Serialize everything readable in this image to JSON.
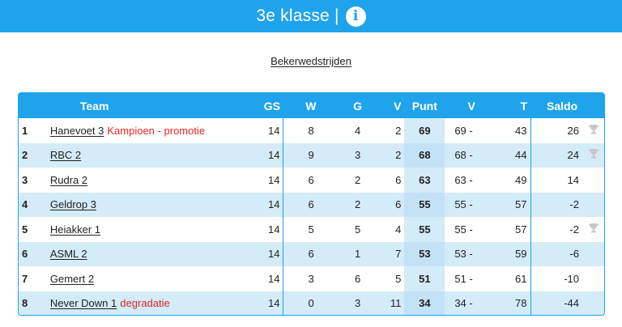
{
  "header": {
    "title": "3e klasse |",
    "info_icon": "info-icon"
  },
  "cup_link": "Bekerwedstrijden",
  "columns": {
    "team": "Team",
    "gs": "GS",
    "w": "W",
    "g": "G",
    "v": "V",
    "punt": "Punt",
    "vv": "V",
    "t": "T",
    "saldo": "Saldo"
  },
  "colors": {
    "accent": "#1fa3ea",
    "row_alt": "#d4ebf8",
    "note": "#e82323",
    "trophy": "#c8c8c8"
  },
  "rows": [
    {
      "pos": "1",
      "team": "Hanevoet 3",
      "note": "Kampioen - promotie",
      "gs": "14",
      "w": "8",
      "g": "4",
      "v": "2",
      "punt": "69",
      "vv": "69 -",
      "t": "43",
      "saldo": "26",
      "trophy": true
    },
    {
      "pos": "2",
      "team": "RBC 2",
      "note": "",
      "gs": "14",
      "w": "9",
      "g": "3",
      "v": "2",
      "punt": "68",
      "vv": "68 -",
      "t": "44",
      "saldo": "24",
      "trophy": true
    },
    {
      "pos": "3",
      "team": "Rudra 2",
      "note": "",
      "gs": "14",
      "w": "6",
      "g": "2",
      "v": "6",
      "punt": "63",
      "vv": "63 -",
      "t": "49",
      "saldo": "14",
      "trophy": false
    },
    {
      "pos": "4",
      "team": "Geldrop 3",
      "note": "",
      "gs": "14",
      "w": "6",
      "g": "2",
      "v": "6",
      "punt": "55",
      "vv": "55 -",
      "t": "57",
      "saldo": "-2",
      "trophy": false
    },
    {
      "pos": "5",
      "team": "Heiakker 1",
      "note": "",
      "gs": "14",
      "w": "5",
      "g": "5",
      "v": "4",
      "punt": "55",
      "vv": "55 -",
      "t": "57",
      "saldo": "-2",
      "trophy": true
    },
    {
      "pos": "6",
      "team": "ASML 2",
      "note": "",
      "gs": "14",
      "w": "6",
      "g": "1",
      "v": "7",
      "punt": "53",
      "vv": "53 -",
      "t": "59",
      "saldo": "-6",
      "trophy": false
    },
    {
      "pos": "7",
      "team": "Gemert 2",
      "note": "",
      "gs": "14",
      "w": "3",
      "g": "6",
      "v": "5",
      "punt": "51",
      "vv": "51 -",
      "t": "61",
      "saldo": "-10",
      "trophy": false
    },
    {
      "pos": "8",
      "team": "Never Down 1",
      "note": "degradatie",
      "gs": "14",
      "w": "0",
      "g": "3",
      "v": "11",
      "punt": "34",
      "vv": "34 -",
      "t": "78",
      "saldo": "-44",
      "trophy": false
    }
  ]
}
